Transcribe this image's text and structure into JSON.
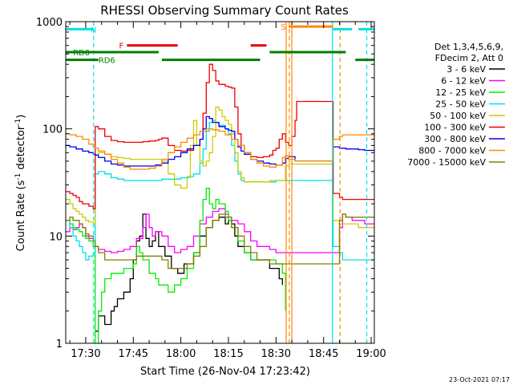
{
  "chart_data": {
    "type": "line",
    "title": "RHESSI Observing Summary Count Rates",
    "xlabel": "Start Time (26-Nov-04 17:23:42)",
    "ylabel_main": "Count Rate (s",
    "ylabel_sup": "-1",
    "ylabel_mid": " detector",
    "ylabel_end": ")",
    "footer_stamp": "23-Oct-2021 07:17",
    "x_start_min": 1043.7,
    "x_end_min": 1141,
    "y_scale": "log",
    "ylim": [
      1,
      1000
    ],
    "x_ticks": [
      {
        "min": 1050,
        "label": "17:30"
      },
      {
        "min": 1065,
        "label": "17:45"
      },
      {
        "min": 1080,
        "label": "18:00"
      },
      {
        "min": 1095,
        "label": "18:15"
      },
      {
        "min": 1110,
        "label": "18:30"
      },
      {
        "min": 1125,
        "label": "18:45"
      },
      {
        "min": 1140,
        "label": "19:00"
      }
    ],
    "y_ticks": [
      {
        "value": 1,
        "label": "1"
      },
      {
        "value": 10,
        "label": "10"
      },
      {
        "value": 100,
        "label": "100"
      },
      {
        "value": 1000,
        "label": "1000"
      }
    ],
    "legend": {
      "position": "right",
      "header": [
        "Det 1,3,4,5,6,9,",
        "FDecim 2, Att 0"
      ],
      "entries": [
        {
          "label": "3 - 6 keV",
          "color": "#000000"
        },
        {
          "label": "6 - 12 keV",
          "color": "#ff00ff"
        },
        {
          "label": "12 - 25 keV",
          "color": "#00ee00"
        },
        {
          "label": "25 - 50 keV",
          "color": "#00e0e0"
        },
        {
          "label": "50 - 100 keV",
          "color": "#cccc00"
        },
        {
          "label": "100 - 300 keV",
          "color": "#ee0000"
        },
        {
          "label": "300 - 800 keV",
          "color": "#0000ee"
        },
        {
          "label": "800 - 7000 keV",
          "color": "#ff8800"
        },
        {
          "label": "7000 - 15000 keV",
          "color": "#808000"
        }
      ]
    },
    "flag_bars": [
      {
        "label": "N",
        "color": "#00e0e0",
        "level": 850,
        "label_at_min": 1051.5,
        "segments": [
          [
            1043.7,
            1052.5
          ],
          [
            1128,
            1134
          ],
          [
            1136,
            1141
          ]
        ]
      },
      {
        "label": "F",
        "color": "#ee0000",
        "level": 600,
        "label_at_min": 1060.5,
        "segments": [
          [
            1063,
            1079
          ],
          [
            1102,
            1107
          ]
        ]
      },
      {
        "label": "S",
        "color": "#ff8800",
        "level": 900,
        "label_at_min": 1111.5,
        "segments": [
          [
            1114,
            1128
          ]
        ]
      },
      {
        "label": "RD0",
        "color": "#008000",
        "level": 520,
        "label_at_min": 1046,
        "segments": [
          [
            1043.7,
            1073
          ],
          [
            1108,
            1132
          ]
        ]
      },
      {
        "label": "RD6",
        "color": "#008000",
        "level": 440,
        "label_at_min": 1054,
        "segments": [
          [
            1043.7,
            1054
          ],
          [
            1074,
            1105
          ],
          [
            1135,
            1141
          ]
        ]
      }
    ],
    "vlines": [
      {
        "min": 1052.5,
        "color": "#00e0e0",
        "style": "dashed"
      },
      {
        "min": 1113.2,
        "color": "#ff8800",
        "style": "solid"
      },
      {
        "min": 1114.2,
        "color": "#ff8800",
        "style": "dashed"
      },
      {
        "min": 1115.0,
        "color": "#ff8800",
        "style": "solid"
      },
      {
        "min": 1127.8,
        "color": "#00e0e0",
        "style": "solid"
      },
      {
        "min": 1130.2,
        "color": "#ff8800",
        "style": "dashed"
      },
      {
        "min": 1138.6,
        "color": "#00e0e0",
        "style": "dashed"
      }
    ],
    "series": [
      {
        "name": "3 - 6 keV",
        "color": "#000000",
        "x": [
          1053,
          1054,
          1056,
          1058,
          1059,
          1060,
          1062,
          1064,
          1065,
          1066,
          1067,
          1068,
          1069,
          1070,
          1071,
          1072,
          1073,
          1075,
          1077,
          1079,
          1081,
          1083,
          1084,
          1086,
          1088,
          1090,
          1092,
          1093,
          1094,
          1095,
          1096,
          1097,
          1098,
          1100,
          1102,
          1104,
          1106,
          1108,
          1110,
          1111,
          1112
        ],
        "y": [
          1.3,
          1.8,
          1.5,
          2.0,
          2.2,
          2.6,
          3.0,
          4.0,
          6.0,
          9.0,
          10.0,
          16.0,
          9.5,
          8.0,
          9.0,
          11.0,
          8.0,
          6.5,
          5.0,
          4.5,
          5.5,
          5.5,
          7.0,
          10.0,
          12.0,
          14.0,
          15.0,
          15.0,
          13.0,
          14.0,
          13.0,
          10.0,
          8.0,
          7.0,
          6.0,
          6.0,
          6.0,
          5.0,
          5.0,
          4.0,
          3.5
        ]
      },
      {
        "name": "6 - 12 keV",
        "color": "#ff00ff",
        "x": [
          1043.7,
          1045,
          1046,
          1047,
          1048,
          1049,
          1050,
          1051,
          1052.4,
          1054,
          1056,
          1058,
          1060,
          1062,
          1064,
          1066,
          1068,
          1069,
          1070,
          1071,
          1072,
          1074,
          1076,
          1078,
          1080,
          1082,
          1084,
          1086,
          1088,
          1090,
          1092,
          1094,
          1095,
          1096,
          1098,
          1100,
          1102,
          1104,
          1106,
          1108,
          1110,
          1112,
          1115,
          1130,
          1131,
          1132,
          1134,
          1136,
          1138,
          1139,
          1141
        ],
        "y": [
          11,
          12,
          11.5,
          12,
          13,
          12,
          10,
          9.5,
          8,
          7.5,
          7.2,
          7.0,
          7.2,
          7.5,
          8,
          9.5,
          12,
          16,
          12,
          10,
          11,
          10,
          8,
          7,
          7.5,
          8,
          10,
          13,
          15,
          17,
          18,
          16,
          15,
          14,
          13,
          11,
          9,
          8,
          8,
          7.5,
          7,
          7,
          7,
          12,
          16,
          15,
          14,
          14,
          13,
          13,
          13
        ]
      },
      {
        "name": "12 - 25 keV",
        "color": "#00ee00",
        "x": [
          1043.7,
          1045,
          1046,
          1047,
          1048,
          1049,
          1050,
          1051,
          1052.4,
          1053,
          1054,
          1055,
          1056,
          1058,
          1060,
          1062,
          1064,
          1065,
          1066,
          1067,
          1068,
          1070,
          1072,
          1073,
          1074,
          1076,
          1078,
          1080,
          1082,
          1084,
          1086,
          1087,
          1088,
          1089,
          1090,
          1091,
          1092,
          1094,
          1095,
          1096,
          1098,
          1100,
          1102,
          1104,
          1106,
          1108,
          1110,
          1112,
          1113
        ],
        "y": [
          14,
          13,
          12,
          11.5,
          11,
          10,
          9.5,
          9,
          8,
          1.0,
          2.0,
          3.0,
          4.0,
          4.5,
          4.5,
          5.0,
          5.0,
          5.5,
          8.0,
          7.0,
          6.0,
          4.5,
          4.0,
          3.5,
          3.5,
          3.0,
          3.5,
          4.0,
          5.0,
          7.0,
          14.0,
          22.0,
          28.0,
          20.0,
          18.0,
          22.0,
          20.0,
          17.0,
          14.0,
          12.0,
          9.0,
          7.0,
          6.0,
          6.0,
          6.0,
          6.0,
          5.5,
          4.5,
          2.0
        ]
      },
      {
        "name": "25 - 50 keV",
        "color": "#00e0e0",
        "x": [
          1043.7,
          1045,
          1046,
          1047,
          1048,
          1049,
          1050,
          1051,
          1052.4,
          1053,
          1054,
          1056,
          1058,
          1060,
          1062,
          1064,
          1066,
          1068,
          1070,
          1072,
          1073,
          1074,
          1076,
          1078,
          1080,
          1082,
          1084,
          1086,
          1087,
          1088,
          1089,
          1090,
          1091,
          1092,
          1094,
          1095,
          1096,
          1097,
          1098,
          1099,
          1100,
          1102,
          1104,
          1106,
          1108,
          1110,
          1112,
          1114,
          1116,
          1128,
          1130,
          1131,
          1132,
          1134,
          1136,
          1138,
          1139,
          1141
        ],
        "y": [
          14,
          12,
          10,
          9,
          8,
          7,
          6,
          6.5,
          7,
          38,
          40,
          38,
          35,
          34,
          33,
          33,
          33,
          33,
          33,
          33,
          33,
          34,
          34,
          34,
          35,
          36,
          38,
          48,
          65,
          95,
          115,
          120,
          115,
          108,
          100,
          90,
          70,
          50,
          38,
          33,
          32,
          32,
          32,
          32,
          32,
          33,
          33,
          33,
          33,
          8,
          7,
          6,
          6,
          6,
          6,
          6,
          6,
          6
        ]
      },
      {
        "name": "50 - 100 keV",
        "color": "#cccc00",
        "x": [
          1043.7,
          1045,
          1046,
          1047,
          1048,
          1049,
          1050,
          1051,
          1052.4,
          1053,
          1054,
          1056,
          1058,
          1060,
          1062,
          1064,
          1066,
          1068,
          1070,
          1072,
          1073,
          1074,
          1076,
          1078,
          1080,
          1082,
          1083,
          1084,
          1085,
          1086,
          1087,
          1088,
          1089,
          1090,
          1091,
          1092,
          1093,
          1094,
          1095,
          1096,
          1097,
          1098,
          1099,
          1100,
          1102,
          1104,
          1106,
          1108,
          1110,
          1112,
          1113,
          1114,
          1116,
          1128,
          1130,
          1131,
          1132,
          1134,
          1136,
          1138,
          1139,
          1141
        ],
        "y": [
          22,
          20,
          18,
          17,
          16,
          15,
          14,
          13.5,
          13,
          57,
          60,
          58,
          55,
          54,
          53,
          52,
          52,
          52,
          52,
          52,
          52,
          50,
          38,
          30,
          28,
          35,
          70,
          120,
          70,
          50,
          45,
          50,
          60,
          85,
          160,
          150,
          130,
          120,
          110,
          90,
          60,
          40,
          35,
          32,
          32,
          32,
          32,
          33,
          33,
          33,
          45,
          47,
          47,
          14,
          13,
          13,
          13,
          13,
          12,
          12,
          12,
          12
        ]
      },
      {
        "name": "100 - 300 keV",
        "color": "#ee0000",
        "x": [
          1043.7,
          1045,
          1046,
          1047,
          1048,
          1049,
          1050,
          1051,
          1052.4,
          1053,
          1054,
          1056,
          1058,
          1060,
          1062,
          1064,
          1066,
          1068,
          1070,
          1072,
          1073,
          1074,
          1076,
          1078,
          1080,
          1082,
          1084,
          1086,
          1087,
          1088,
          1089,
          1090,
          1091,
          1092,
          1094,
          1095,
          1096,
          1097,
          1098,
          1099,
          1100,
          1102,
          1104,
          1106,
          1108,
          1109,
          1110,
          1111,
          1112,
          1113,
          1114,
          1115,
          1116,
          1116.5,
          1128,
          1130,
          1131,
          1132,
          1134,
          1136,
          1138,
          1139,
          1141
        ],
        "y": [
          26,
          25,
          24,
          23,
          21,
          20,
          20,
          19,
          18,
          105,
          100,
          85,
          78,
          76,
          75,
          75,
          75,
          76,
          77,
          78,
          80,
          82,
          70,
          63,
          62,
          63,
          70,
          80,
          140,
          270,
          400,
          350,
          280,
          260,
          250,
          245,
          240,
          160,
          90,
          70,
          60,
          55,
          54,
          55,
          57,
          63,
          66,
          80,
          90,
          75,
          70,
          85,
          120,
          180,
          25,
          23,
          22,
          22,
          22,
          22,
          22,
          22,
          22
        ]
      },
      {
        "name": "300 - 800 keV",
        "color": "#0000ee",
        "x": [
          1043.7,
          1045,
          1047,
          1049,
          1051,
          1052.4,
          1053,
          1054,
          1056,
          1058,
          1060,
          1062,
          1064,
          1066,
          1068,
          1070,
          1072,
          1073,
          1074,
          1076,
          1078,
          1080,
          1082,
          1084,
          1086,
          1087,
          1088,
          1089,
          1090,
          1092,
          1094,
          1095,
          1096,
          1097,
          1098,
          1099,
          1100,
          1102,
          1104,
          1106,
          1108,
          1110,
          1112,
          1113,
          1114,
          1116,
          1128,
          1130,
          1131,
          1132,
          1134,
          1136,
          1138,
          1139,
          1141
        ],
        "y": [
          70,
          68,
          65,
          62,
          60,
          58,
          57,
          54,
          50,
          47,
          46,
          45,
          45,
          45,
          45,
          45,
          46,
          46,
          48,
          52,
          55,
          60,
          65,
          70,
          80,
          100,
          130,
          125,
          115,
          105,
          100,
          97,
          95,
          80,
          68,
          62,
          58,
          52,
          50,
          48,
          47,
          46,
          48,
          53,
          55,
          50,
          68,
          66,
          66,
          65,
          65,
          64,
          63,
          63,
          63
        ]
      },
      {
        "name": "800 - 7000 keV",
        "color": "#ff8800",
        "x": [
          1043.7,
          1045,
          1047,
          1049,
          1051,
          1052.4,
          1053,
          1054,
          1056,
          1058,
          1060,
          1062,
          1064,
          1066,
          1068,
          1070,
          1072,
          1074,
          1076,
          1078,
          1080,
          1082,
          1084,
          1086,
          1088,
          1090,
          1092,
          1094,
          1096,
          1098,
          1100,
          1102,
          1104,
          1106,
          1108,
          1110,
          1112,
          1113,
          1114,
          1116,
          1128,
          1130,
          1131,
          1132,
          1134,
          1136,
          1138,
          1139,
          1141
        ],
        "y": [
          90,
          88,
          85,
          80,
          72,
          68,
          66,
          62,
          58,
          52,
          48,
          44,
          42,
          42,
          42,
          43,
          45,
          52,
          60,
          68,
          75,
          82,
          88,
          95,
          100,
          98,
          95,
          88,
          80,
          70,
          60,
          52,
          48,
          45,
          44,
          46,
          54,
          56,
          52,
          50,
          80,
          85,
          88,
          88,
          88,
          88,
          88,
          88,
          88
        ]
      },
      {
        "name": "7000 - 15000 keV",
        "color": "#808000",
        "x": [
          1043.7,
          1045,
          1046,
          1047,
          1048,
          1049,
          1050,
          1051,
          1052.4,
          1053,
          1054,
          1056,
          1058,
          1060,
          1062,
          1064,
          1066,
          1068,
          1070,
          1072,
          1073,
          1074,
          1076,
          1078,
          1080,
          1082,
          1084,
          1086,
          1088,
          1090,
          1092,
          1094,
          1096,
          1098,
          1100,
          1102,
          1104,
          1106,
          1108,
          1110,
          1112,
          1113,
          1115,
          1130,
          1131,
          1132,
          1134,
          1136,
          1138,
          1139,
          1141
        ],
        "y": [
          14,
          15,
          14,
          14,
          13,
          12,
          10.5,
          10,
          9,
          8,
          7,
          6,
          6,
          6,
          6,
          6,
          6.5,
          6.5,
          6.5,
          6.5,
          6.5,
          6,
          5,
          5,
          5,
          5.5,
          6.5,
          8,
          12,
          14,
          16,
          15,
          12,
          10,
          8,
          7,
          6,
          6,
          5.5,
          5.5,
          5.5,
          5.5,
          5.5,
          14,
          16,
          15,
          15,
          15,
          15,
          15,
          15
        ]
      }
    ]
  }
}
